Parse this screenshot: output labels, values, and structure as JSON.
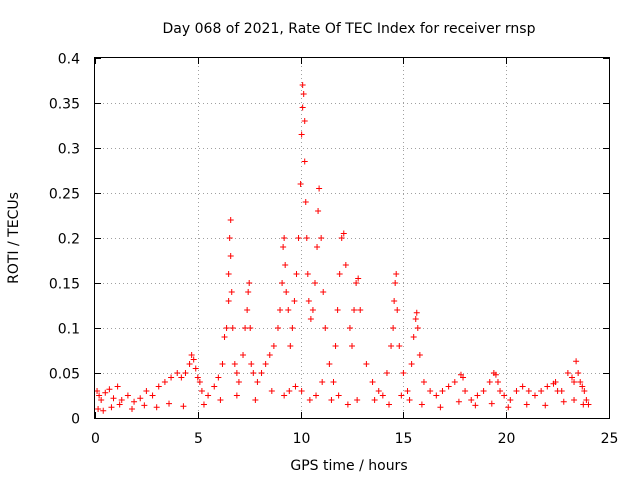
{
  "chart_data": {
    "type": "scatter",
    "title": "Day 068 of 2021, Rate Of TEC Index for receiver rnsp",
    "xlabel": "GPS time / hours",
    "ylabel": "ROTI / TECUs",
    "xlim": [
      0,
      25
    ],
    "ylim": [
      0,
      0.4
    ],
    "xticks": [
      0,
      5,
      10,
      15,
      20,
      25
    ],
    "xtick_labels": [
      "0",
      "5",
      "10",
      "15",
      "20",
      "25"
    ],
    "yticks": [
      0,
      0.05,
      0.1,
      0.15,
      0.2,
      0.25,
      0.3,
      0.35,
      0.4
    ],
    "ytick_labels": [
      "0",
      "0.05",
      "0.1",
      "0.15",
      "0.2",
      "0.25",
      "0.3",
      "0.35",
      "0.4"
    ],
    "grid": true,
    "marker": "+",
    "marker_color": "#ff0000",
    "series": [
      {
        "name": "ROTI",
        "x": [
          0.1,
          0.2,
          0.3,
          0.5,
          0.7,
          0.9,
          1.1,
          1.3,
          1.6,
          1.9,
          2.2,
          2.5,
          2.8,
          3.1,
          3.4,
          3.7,
          4.0,
          4.2,
          4.4,
          4.6,
          4.7,
          4.8,
          4.9,
          5.0,
          5.1,
          5.2,
          5.5,
          5.8,
          6.0,
          6.2,
          6.3,
          6.4,
          6.5,
          6.5,
          6.55,
          6.6,
          6.6,
          6.65,
          6.7,
          6.8,
          6.9,
          7.0,
          7.2,
          7.3,
          7.4,
          7.45,
          7.5,
          7.55,
          7.6,
          7.7,
          7.9,
          8.1,
          8.3,
          8.5,
          8.7,
          8.9,
          9.0,
          9.1,
          9.15,
          9.2,
          9.25,
          9.3,
          9.4,
          9.5,
          9.6,
          9.7,
          9.8,
          9.9,
          10.0,
          10.05,
          10.1,
          10.1,
          10.15,
          10.2,
          10.2,
          10.25,
          10.3,
          10.35,
          10.4,
          10.5,
          10.6,
          10.7,
          10.8,
          10.85,
          10.9,
          11.0,
          11.1,
          11.2,
          11.4,
          11.6,
          11.7,
          11.8,
          11.9,
          12.0,
          12.1,
          12.2,
          12.4,
          12.5,
          12.6,
          12.7,
          12.8,
          12.9,
          13.2,
          13.5,
          13.8,
          14.0,
          14.2,
          14.4,
          14.5,
          14.55,
          14.6,
          14.65,
          14.7,
          14.8,
          15.0,
          15.2,
          15.4,
          15.5,
          15.6,
          15.65,
          15.7,
          15.8,
          16.0,
          16.3,
          16.6,
          16.9,
          17.2,
          17.5,
          17.8,
          17.9,
          18.0,
          18.3,
          18.6,
          18.9,
          19.2,
          19.4,
          19.5,
          19.6,
          19.7,
          19.9,
          20.2,
          20.5,
          20.8,
          21.1,
          21.4,
          21.7,
          22.0,
          22.3,
          22.4,
          22.5,
          22.7,
          23.0,
          23.2,
          23.3,
          23.4,
          23.5,
          23.6,
          23.7,
          23.8,
          23.9,
          24.0,
          0.15,
          0.4,
          0.8,
          1.2,
          1.8,
          2.4,
          3.0,
          3.6,
          4.3,
          5.3,
          6.1,
          6.9,
          7.8,
          8.6,
          9.2,
          9.45,
          9.75,
          10.05,
          10.45,
          10.75,
          11.05,
          11.5,
          11.85,
          12.3,
          12.75,
          13.6,
          14.3,
          14.9,
          15.3,
          15.9,
          16.8,
          17.7,
          18.5,
          19.3,
          20.1,
          21.0,
          21.9,
          22.8,
          23.3,
          23.75
        ],
        "y": [
          0.03,
          0.025,
          0.02,
          0.028,
          0.032,
          0.022,
          0.035,
          0.02,
          0.025,
          0.018,
          0.022,
          0.03,
          0.025,
          0.035,
          0.04,
          0.045,
          0.05,
          0.045,
          0.05,
          0.06,
          0.07,
          0.065,
          0.055,
          0.045,
          0.04,
          0.03,
          0.025,
          0.035,
          0.045,
          0.06,
          0.09,
          0.1,
          0.13,
          0.16,
          0.2,
          0.22,
          0.18,
          0.14,
          0.1,
          0.06,
          0.05,
          0.04,
          0.07,
          0.1,
          0.12,
          0.14,
          0.15,
          0.1,
          0.06,
          0.05,
          0.04,
          0.05,
          0.06,
          0.07,
          0.08,
          0.1,
          0.12,
          0.15,
          0.19,
          0.2,
          0.17,
          0.14,
          0.12,
          0.08,
          0.1,
          0.13,
          0.16,
          0.2,
          0.26,
          0.315,
          0.345,
          0.37,
          0.36,
          0.33,
          0.285,
          0.24,
          0.2,
          0.16,
          0.13,
          0.11,
          0.12,
          0.15,
          0.19,
          0.23,
          0.255,
          0.2,
          0.14,
          0.1,
          0.06,
          0.04,
          0.08,
          0.12,
          0.16,
          0.2,
          0.205,
          0.17,
          0.1,
          0.08,
          0.12,
          0.15,
          0.155,
          0.12,
          0.06,
          0.04,
          0.03,
          0.025,
          0.05,
          0.08,
          0.1,
          0.13,
          0.15,
          0.16,
          0.12,
          0.08,
          0.05,
          0.03,
          0.06,
          0.09,
          0.11,
          0.117,
          0.1,
          0.07,
          0.04,
          0.03,
          0.025,
          0.03,
          0.035,
          0.04,
          0.048,
          0.045,
          0.03,
          0.02,
          0.025,
          0.03,
          0.04,
          0.05,
          0.048,
          0.04,
          0.03,
          0.025,
          0.02,
          0.03,
          0.035,
          0.03,
          0.025,
          0.03,
          0.035,
          0.038,
          0.04,
          0.03,
          0.03,
          0.05,
          0.045,
          0.04,
          0.063,
          0.05,
          0.04,
          0.035,
          0.03,
          0.02,
          0.015,
          0.01,
          0.008,
          0.012,
          0.015,
          0.01,
          0.014,
          0.012,
          0.016,
          0.013,
          0.015,
          0.02,
          0.025,
          0.02,
          0.03,
          0.025,
          0.03,
          0.035,
          0.03,
          0.02,
          0.025,
          0.04,
          0.02,
          0.025,
          0.015,
          0.02,
          0.02,
          0.015,
          0.025,
          0.02,
          0.015,
          0.012,
          0.018,
          0.014,
          0.016,
          0.012,
          0.015,
          0.014,
          0.018,
          0.02,
          0.015
        ]
      }
    ]
  }
}
